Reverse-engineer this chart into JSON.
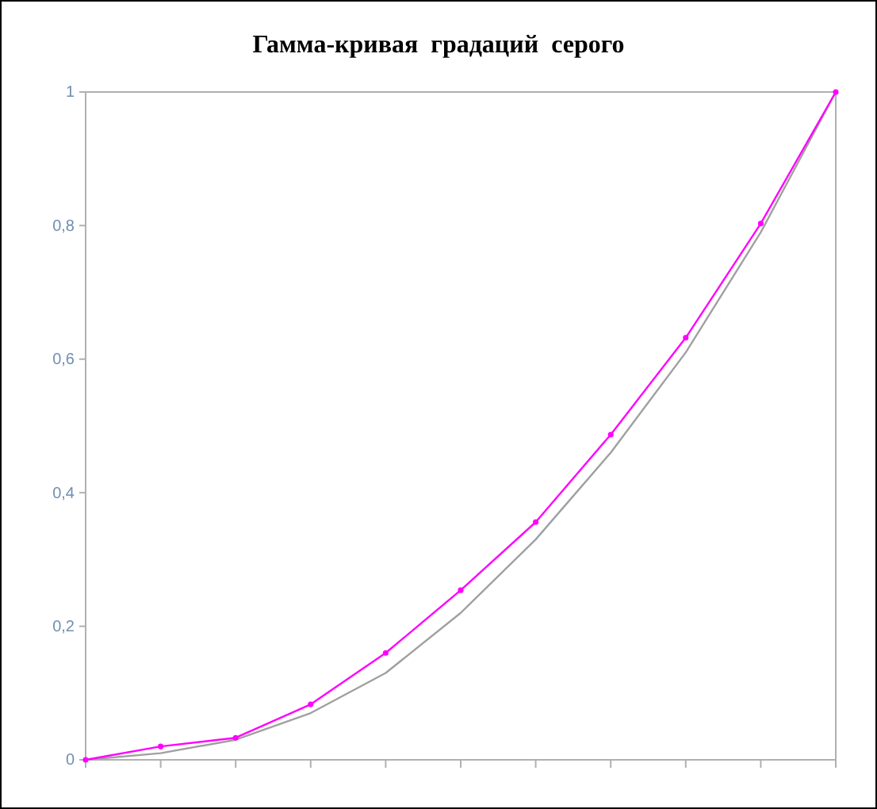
{
  "chart_data": {
    "type": "line",
    "title": "Гамма-кривая  градаций  серого",
    "categories": [
      null,
      null,
      null,
      null,
      null,
      null,
      null,
      null,
      null,
      null,
      null
    ],
    "series": [
      {
        "color": "#a0a0a0",
        "marker": "none",
        "values": [
          0,
          0.01,
          0.03,
          0.07,
          0.13,
          0.22,
          0.33,
          0.46,
          0.61,
          0.79,
          1
        ]
      },
      {
        "color": "#ff00ff",
        "marker": "circle",
        "values": [
          0,
          0.02,
          0.033,
          0.083,
          0.16,
          0.254,
          0.356,
          0.487,
          0.632,
          0.803,
          1
        ]
      }
    ],
    "ylim": [
      0,
      1
    ],
    "yticks": [
      0,
      {
        "value": 0.2,
        "label": "0,2"
      },
      {
        "value": 0.4,
        "label": "0,4"
      },
      {
        "value": 0.6,
        "label": "0,6"
      },
      {
        "value": 0.8,
        "label": "0,8"
      },
      1
    ],
    "grid": false
  }
}
